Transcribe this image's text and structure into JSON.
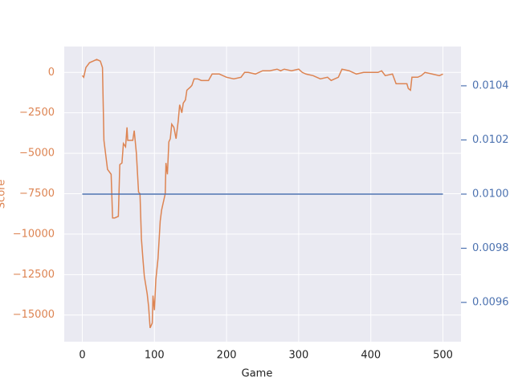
{
  "chart_data": {
    "type": "line",
    "xlabel": "Game",
    "ylabel": "Score",
    "xlim": [
      -25,
      525
    ],
    "xticks": [
      0,
      100,
      200,
      300,
      400,
      500
    ],
    "ylim": [
      -16650,
      1600
    ],
    "yticks": [
      {
        "value": 0,
        "label": "0"
      },
      {
        "value": -2500,
        "label": "−2500"
      },
      {
        "value": -5000,
        "label": "−5000"
      },
      {
        "value": -7500,
        "label": "−7500"
      },
      {
        "value": -10000,
        "label": "−10000"
      },
      {
        "value": -12500,
        "label": "−12500"
      },
      {
        "value": -15000,
        "label": "−15000"
      }
    ],
    "y2lim": [
      0.009455,
      0.010545
    ],
    "y2ticks": [
      0.0096,
      0.0098,
      {
        "value": 0.01,
        "label": "0.0100"
      },
      0.0102,
      0.0104
    ],
    "grid": true,
    "series": [
      {
        "color": "#dd8452",
        "x": [
          0,
          2,
          5,
          10,
          15,
          20,
          25,
          28,
          30,
          35,
          40,
          42,
          45,
          50,
          52,
          55,
          57,
          60,
          62,
          63,
          65,
          70,
          72,
          75,
          78,
          80,
          82,
          84,
          86,
          90,
          92,
          94,
          97,
          98,
          100,
          102,
          105,
          108,
          110,
          115,
          116,
          118,
          120,
          122,
          124,
          127,
          130,
          133,
          135,
          138,
          140,
          143,
          145,
          150,
          152,
          155,
          160,
          165,
          170,
          175,
          180,
          190,
          195,
          200,
          210,
          220,
          225,
          230,
          240,
          250,
          260,
          270,
          275,
          280,
          290,
          300,
          305,
          310,
          320,
          330,
          340,
          345,
          350,
          355,
          360,
          370,
          375,
          380,
          390,
          400,
          410,
          415,
          420,
          430,
          435,
          450,
          452,
          455,
          457,
          465,
          470,
          475,
          485,
          495,
          500
        ],
        "values": [
          -200,
          -300,
          300,
          600,
          700,
          800,
          700,
          300,
          -4200,
          -6000,
          -6300,
          -9000,
          -9000,
          -8900,
          -5700,
          -5600,
          -4400,
          -4600,
          -3400,
          -4200,
          -4200,
          -4200,
          -3600,
          -5000,
          -7400,
          -7500,
          -10300,
          -11500,
          -12600,
          -13700,
          -14500,
          -15800,
          -15500,
          -13800,
          -14700,
          -12800,
          -11500,
          -9200,
          -8500,
          -7500,
          -5600,
          -6300,
          -4300,
          -4100,
          -3200,
          -3400,
          -4100,
          -3000,
          -2000,
          -2500,
          -1900,
          -1700,
          -1100,
          -900,
          -800,
          -400,
          -400,
          -500,
          -500,
          -500,
          -100,
          -100,
          -200,
          -300,
          -400,
          -300,
          0,
          0,
          -100,
          100,
          100,
          200,
          100,
          200,
          100,
          200,
          0,
          -100,
          -200,
          -400,
          -300,
          -500,
          -400,
          -300,
          200,
          100,
          0,
          -100,
          0,
          0,
          0,
          100,
          -200,
          -100,
          -700,
          -700,
          -1000,
          -1100,
          -300,
          -300,
          -200,
          0,
          -100,
          -200,
          -100
        ]
      },
      {
        "color": "#4c72b0",
        "axis": "y2",
        "x": [
          0,
          500
        ],
        "values": [
          0.01,
          0.01
        ]
      }
    ]
  }
}
